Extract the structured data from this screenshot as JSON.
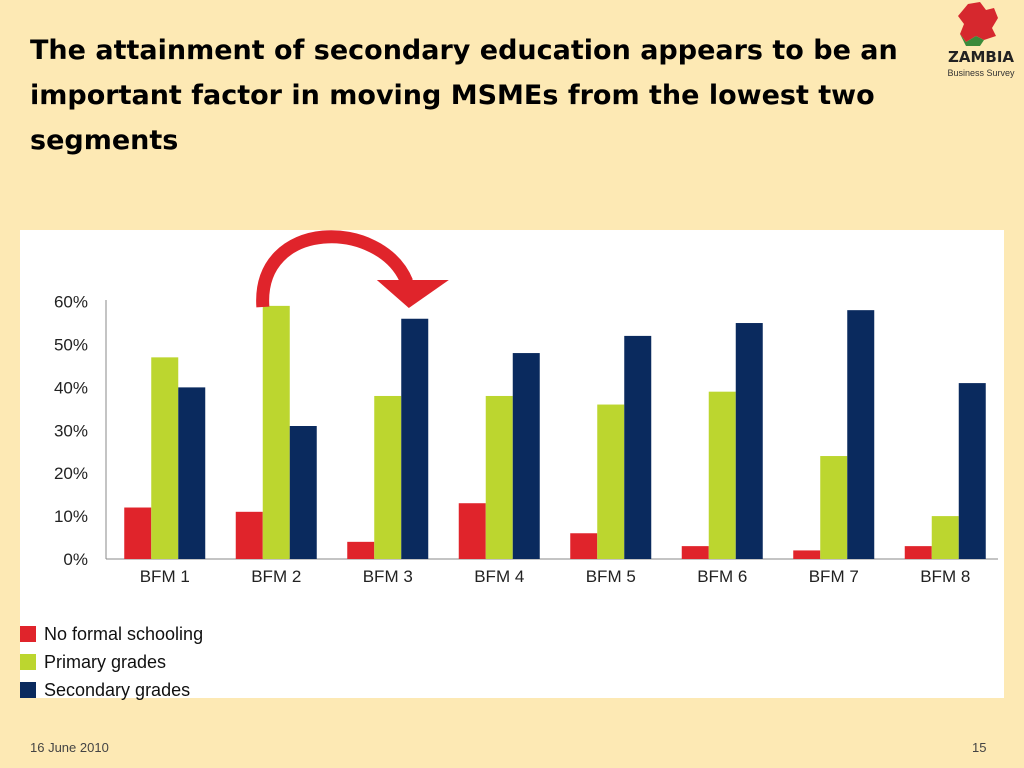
{
  "slide": {
    "title": "The attainment of secondary education appears to be an important factor in moving MSMEs from the lowest two segments",
    "logo_text": "ZAMBIA",
    "logo_subtext": "Business Survey",
    "footer_date": "16 June 2010",
    "footer_page": "15"
  },
  "colors": {
    "background": "#fde9b4",
    "no_formal": "#e0242b",
    "primary": "#bcd62f",
    "secondary": "#0a2a5e",
    "arrow": "#e0242b"
  },
  "chart_data": {
    "type": "bar",
    "categories": [
      "BFM 1",
      "BFM 2",
      "BFM 3",
      "BFM 4",
      "BFM 5",
      "BFM 6",
      "BFM 7",
      "BFM 8"
    ],
    "series": [
      {
        "name": "No formal schooling",
        "values": [
          12,
          11,
          4,
          13,
          6,
          3,
          2,
          3
        ]
      },
      {
        "name": "Primary grades",
        "values": [
          47,
          59,
          38,
          38,
          36,
          39,
          24,
          10
        ]
      },
      {
        "name": "Secondary grades",
        "values": [
          40,
          31,
          56,
          48,
          52,
          55,
          58,
          41
        ]
      }
    ],
    "yticks": [
      "0%",
      "10%",
      "20%",
      "30%",
      "40%",
      "50%",
      "60%"
    ],
    "ylim": [
      0,
      62
    ],
    "legend_position": "bottom-left",
    "grid": false,
    "annotation": "curved arrow from BFM 2 to BFM 3"
  }
}
